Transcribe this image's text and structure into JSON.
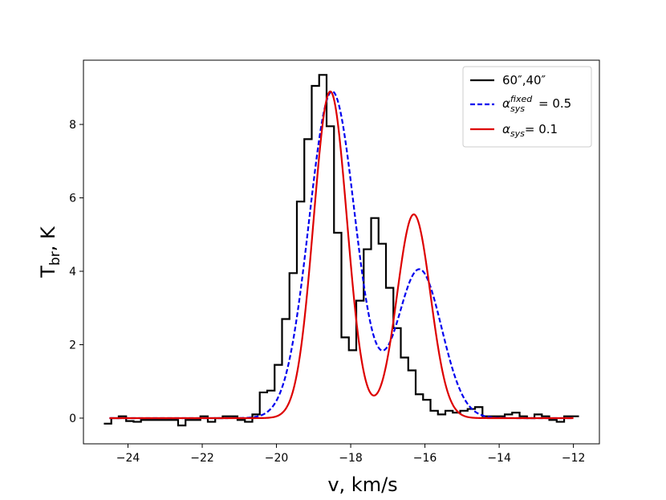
{
  "chart_data": {
    "type": "line",
    "title": "",
    "xlabel": "v, km/s",
    "ylabel": {
      "main": "T",
      "sub": "br",
      "rest": ", K"
    },
    "xlim": [
      -25.2,
      -11.3
    ],
    "ylim": [
      -0.7,
      9.75
    ],
    "xticks": [
      -24,
      -22,
      -20,
      -18,
      -16,
      -14,
      -12
    ],
    "xtick_labels": [
      "−24",
      "−22",
      "−20",
      "−18",
      "−16",
      "−14",
      "−12"
    ],
    "yticks": [
      0,
      2,
      4,
      6,
      8
    ],
    "ytick_labels": [
      "0",
      "2",
      "4",
      "6",
      "8"
    ],
    "legend_position": "top-right",
    "series": [
      {
        "name": "60″,40″",
        "color": "#000000",
        "style": "step",
        "x": [
          -24.55,
          -24.35,
          -24.15,
          -23.95,
          -23.75,
          -23.55,
          -23.35,
          -23.15,
          -22.95,
          -22.75,
          -22.55,
          -22.35,
          -22.15,
          -21.95,
          -21.75,
          -21.55,
          -21.35,
          -21.15,
          -20.95,
          -20.75,
          -20.55,
          -20.35,
          -20.15,
          -19.95,
          -19.75,
          -19.55,
          -19.35,
          -19.15,
          -18.95,
          -18.75,
          -18.55,
          -18.35,
          -18.15,
          -17.95,
          -17.75,
          -17.55,
          -17.35,
          -17.15,
          -16.95,
          -16.75,
          -16.55,
          -16.35,
          -16.15,
          -15.95,
          -15.75,
          -15.55,
          -15.35,
          -15.15,
          -14.95,
          -14.75,
          -14.55,
          -14.35,
          -14.15,
          -13.95,
          -13.75,
          -13.55,
          -13.35,
          -13.15,
          -12.95,
          -12.75,
          -12.55,
          -12.35,
          -12.15,
          -11.95
        ],
        "y": [
          -0.15,
          0.0,
          0.05,
          -0.08,
          -0.1,
          -0.05,
          -0.05,
          -0.05,
          -0.05,
          -0.05,
          -0.2,
          -0.05,
          -0.05,
          0.05,
          -0.1,
          0.0,
          0.05,
          0.05,
          -0.05,
          -0.1,
          0.1,
          0.7,
          0.75,
          1.45,
          2.7,
          3.95,
          5.9,
          7.6,
          9.05,
          9.35,
          7.95,
          5.05,
          2.2,
          1.85,
          3.2,
          4.6,
          5.45,
          4.75,
          3.55,
          2.45,
          1.65,
          1.3,
          0.65,
          0.5,
          0.2,
          0.1,
          0.2,
          0.15,
          0.2,
          0.25,
          0.3,
          0.05,
          0.05,
          0.05,
          0.1,
          0.15,
          0.05,
          0.0,
          0.1,
          0.05,
          -0.05,
          -0.1,
          0.05,
          0.05
        ]
      },
      {
        "name_main": "α",
        "name_sub": "sys",
        "name_sup": "fixed",
        "name_rest": "= 0.5",
        "color": "#0000ee",
        "style": "dashed",
        "components": [
          {
            "amp": 8.9,
            "center": -18.5,
            "sigma": 0.62
          },
          {
            "amp": 4.05,
            "center": -16.15,
            "sigma": 0.6
          }
        ]
      },
      {
        "name_main": "α",
        "name_sub": "sys",
        "name_rest": "= 0.1",
        "color": "#dd0000",
        "style": "solid",
        "components": [
          {
            "amp": 8.9,
            "center": -18.55,
            "sigma": 0.45
          },
          {
            "amp": 5.55,
            "center": -16.3,
            "sigma": 0.45
          }
        ]
      }
    ]
  }
}
